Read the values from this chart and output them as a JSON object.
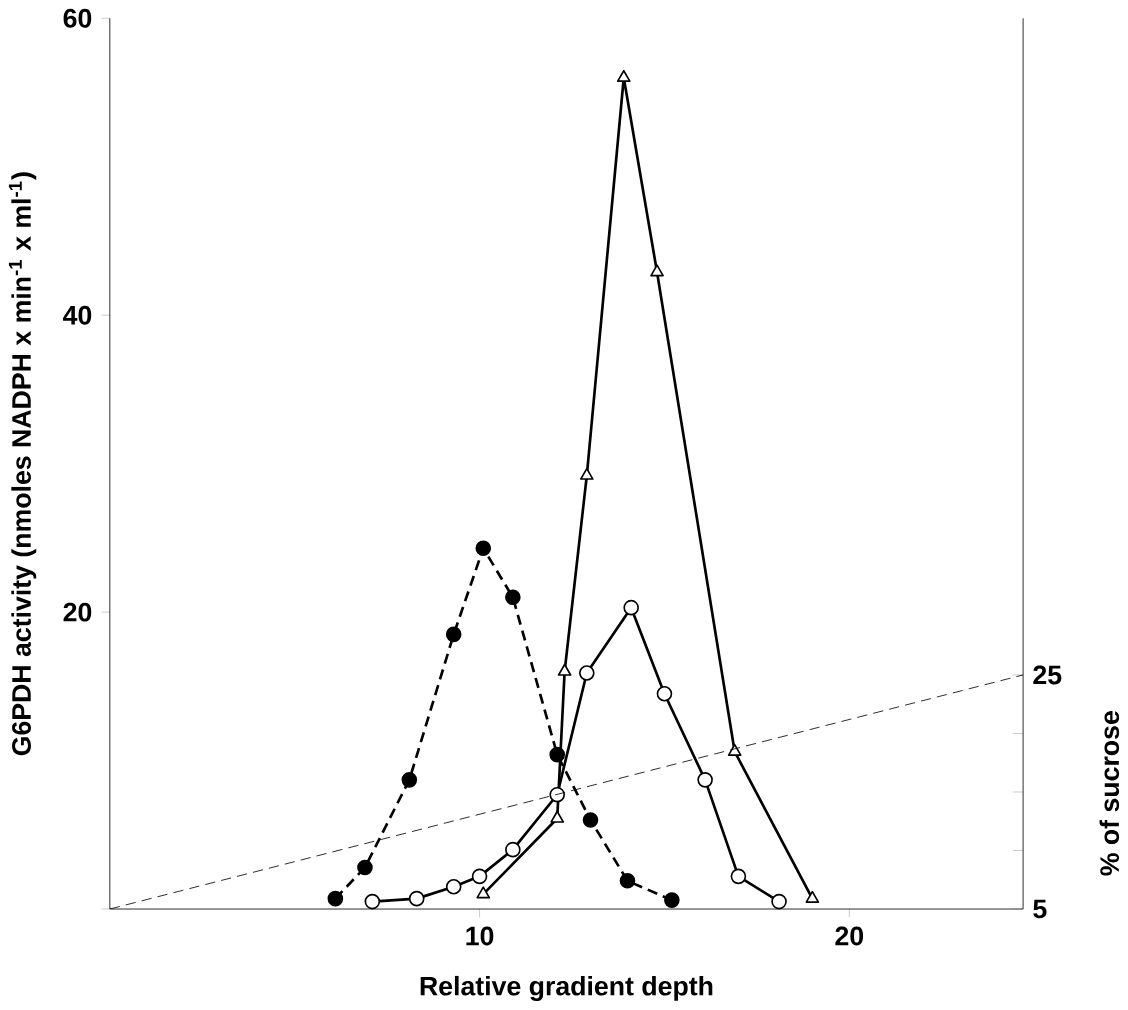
{
  "chart_data": {
    "type": "line",
    "xlabel": "Relative gradient depth",
    "ylabel": "G6PDH activity (nmoles NADPH x min$^{-1}$ x ml$^{-1}$)",
    "y2label": "% of sucrose",
    "xlim": [
      0,
      24.7
    ],
    "xticks": [
      10,
      20
    ],
    "ylim": [
      0,
      60
    ],
    "yticks": [
      {
        "value": 0,
        "label": null
      },
      20,
      40,
      60
    ],
    "y2lim": [
      5,
      81.1
    ],
    "y2ticks": [
      5,
      {
        "value": 10,
        "label": null
      },
      {
        "value": 15,
        "label": null
      },
      {
        "value": 20,
        "label": null
      },
      25
    ],
    "grid": false,
    "series": [
      {
        "color": "#000000",
        "marker": "circle",
        "line_style": "dashed",
        "x": [
          6.1,
          6.9,
          8.1,
          9.3,
          10.1,
          10.9,
          12.1,
          13.0,
          14.0,
          15.2
        ],
        "values": [
          0.7,
          2.8,
          8.7,
          18.5,
          24.3,
          21.0,
          10.4,
          6.0,
          1.9,
          0.6
        ]
      },
      {
        "color": "#000000",
        "marker": "circle",
        "line_style": "solid",
        "x": [
          7.1,
          8.3,
          9.3,
          10.0,
          10.9,
          12.1,
          12.9,
          14.1,
          15.0,
          16.1,
          17.0,
          18.1
        ],
        "values": [
          0.5,
          0.7,
          1.5,
          2.2,
          4.0,
          7.7,
          15.9,
          20.3,
          14.5,
          8.7,
          2.2,
          0.5
        ]
      },
      {
        "color": "#000000",
        "marker": "triangle",
        "line_style": "solid",
        "x": [
          10.1,
          12.1,
          12.3,
          12.9,
          13.9,
          14.8,
          16.9,
          19.0
        ],
        "values": [
          1.0,
          6.1,
          16.0,
          29.2,
          56.0,
          42.9,
          10.6,
          0.7
        ]
      },
      {
        "color": "#000000",
        "marker": "none",
        "line_style": "dashed",
        "axis": "y2",
        "x": [
          0,
          24.7
        ],
        "values": [
          5,
          25
        ]
      }
    ]
  }
}
